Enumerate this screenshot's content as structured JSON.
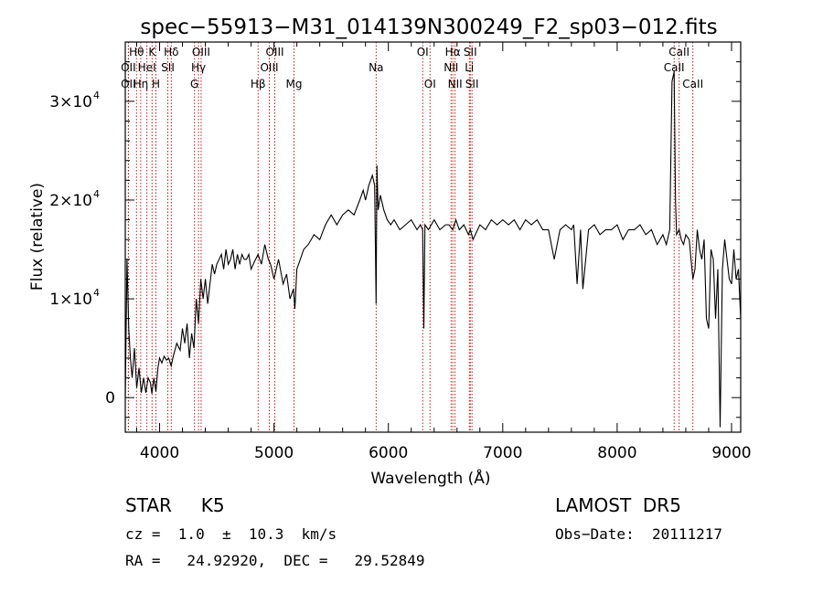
{
  "chart_data": {
    "type": "line",
    "title": "spec−55913−M31_014139N300249_F2_sp03−012.fits",
    "xlabel": "Wavelength (Å)",
    "ylabel": "Flux (relative)",
    "xlim": [
      3700,
      9080
    ],
    "ylim": [
      -3500,
      36000
    ],
    "x_ticks": [
      {
        "value": 4000,
        "label": "4000"
      },
      {
        "value": 5000,
        "label": "5000"
      },
      {
        "value": 6000,
        "label": "6000"
      },
      {
        "value": 7000,
        "label": "7000"
      },
      {
        "value": 8000,
        "label": "8000"
      },
      {
        "value": 9000,
        "label": "9000"
      }
    ],
    "y_ticks": [
      {
        "value": 0,
        "mantissa": "0",
        "exp": ""
      },
      {
        "value": 10000,
        "mantissa": "1×10",
        "exp": "4"
      },
      {
        "value": 20000,
        "mantissa": "2×10",
        "exp": "4"
      },
      {
        "value": 30000,
        "mantissa": "3×10",
        "exp": "4"
      }
    ],
    "grid": false,
    "line_color": "#000000",
    "spectrum": {
      "x": [
        3700,
        3715,
        3730,
        3745,
        3760,
        3780,
        3800,
        3820,
        3840,
        3860,
        3880,
        3900,
        3920,
        3933,
        3950,
        3968,
        3985,
        4000,
        4020,
        4040,
        4060,
        4080,
        4101,
        4120,
        4150,
        4180,
        4200,
        4220,
        4240,
        4260,
        4280,
        4300,
        4320,
        4340,
        4360,
        4380,
        4400,
        4420,
        4440,
        4460,
        4480,
        4500,
        4520,
        4540,
        4560,
        4580,
        4600,
        4620,
        4640,
        4660,
        4680,
        4700,
        4720,
        4740,
        4760,
        4780,
        4800,
        4830,
        4861,
        4890,
        4920,
        4950,
        4970,
        5000,
        5040,
        5080,
        5110,
        5140,
        5170,
        5183,
        5200,
        5230,
        5260,
        5300,
        5350,
        5400,
        5450,
        5500,
        5550,
        5600,
        5650,
        5700,
        5750,
        5780,
        5800,
        5830,
        5860,
        5880,
        5893,
        5900,
        5910,
        5930,
        5960,
        5990,
        6020,
        6050,
        6100,
        6150,
        6200,
        6250,
        6280,
        6300,
        6310,
        6320,
        6350,
        6400,
        6450,
        6500,
        6530,
        6563,
        6590,
        6620,
        6660,
        6700,
        6716,
        6740,
        6800,
        6850,
        6900,
        6950,
        7000,
        7050,
        7100,
        7150,
        7200,
        7250,
        7300,
        7350,
        7400,
        7450,
        7500,
        7550,
        7600,
        7620,
        7650,
        7680,
        7700,
        7750,
        7800,
        7850,
        7900,
        7950,
        8000,
        8050,
        8100,
        8150,
        8200,
        8250,
        8300,
        8350,
        8400,
        8430,
        8460,
        8480,
        8498,
        8510,
        8520,
        8542,
        8560,
        8580,
        8600,
        8630,
        8662,
        8680,
        8700,
        8720,
        8740,
        8760,
        8780,
        8800,
        8820,
        8840,
        8860,
        8880,
        8900,
        8920,
        8940,
        8960,
        8980,
        9000,
        9020,
        9040,
        9060,
        9080
      ],
      "y": [
        0,
        14000,
        7000,
        4000,
        2000,
        5000,
        1000,
        3000,
        500,
        2000,
        500,
        2000,
        1500,
        400,
        2000,
        600,
        3000,
        4000,
        3500,
        4200,
        3800,
        4000,
        3200,
        4200,
        5500,
        4800,
        7000,
        5500,
        7500,
        4000,
        6500,
        5000,
        10000,
        7500,
        12000,
        10000,
        12000,
        9500,
        11500,
        13500,
        12500,
        13500,
        14000,
        14500,
        13000,
        15000,
        13500,
        14000,
        15000,
        13000,
        14500,
        13500,
        14500,
        14000,
        14000,
        14500,
        13000,
        13800,
        14500,
        13500,
        15500,
        14000,
        13500,
        12000,
        14000,
        11500,
        12500,
        10000,
        11000,
        9000,
        13000,
        14000,
        15000,
        15500,
        16500,
        16000,
        17500,
        18500,
        17500,
        18500,
        19000,
        18500,
        20000,
        21000,
        20000,
        21500,
        22500,
        21500,
        9500,
        23500,
        19000,
        20500,
        19000,
        18000,
        17500,
        18000,
        17000,
        17500,
        18000,
        17000,
        17500,
        17000,
        7000,
        17500,
        17000,
        18000,
        17000,
        17500,
        17500,
        17000,
        18000,
        17000,
        17500,
        16500,
        17000,
        16000,
        17500,
        17000,
        18000,
        17500,
        18000,
        17500,
        18000,
        17000,
        18000,
        17500,
        18000,
        17000,
        17000,
        14000,
        17000,
        17500,
        17000,
        17500,
        11500,
        17000,
        11000,
        17000,
        17500,
        16500,
        17000,
        17000,
        17500,
        16000,
        17000,
        17000,
        17500,
        16500,
        17000,
        15500,
        16500,
        15500,
        17000,
        32000,
        33000,
        20000,
        16500,
        17000,
        16000,
        15500,
        16500,
        16000,
        12000,
        13000,
        17000,
        15000,
        14000,
        16000,
        8000,
        7000,
        15000,
        14000,
        8000,
        13000,
        -3000,
        13000,
        16000,
        14000,
        12000,
        11500,
        15000,
        12000,
        13000,
        8000
      ]
    },
    "lines": [
      {
        "name": "O II",
        "wavelength": 3727,
        "label": "OII",
        "row": 2
      },
      {
        "name": "H theta",
        "wavelength": 3798,
        "label": "Hθ",
        "row": 0
      },
      {
        "name": "O II",
        "wavelength": 3727,
        "label": "OII",
        "row": 1
      },
      {
        "name": "He I",
        "wavelength": 3889,
        "label": "HeI",
        "row": 1
      },
      {
        "name": "H eta",
        "wavelength": 3835,
        "label": "Hη",
        "row": 2
      },
      {
        "name": "K",
        "wavelength": 3934,
        "label": "K",
        "row": 0
      },
      {
        "name": "H",
        "wavelength": 3968,
        "label": "H",
        "row": 2
      },
      {
        "name": "H delta",
        "wavelength": 4102,
        "label": "Hδ",
        "row": 0
      },
      {
        "name": "S II",
        "wavelength": 4072,
        "label": "SII",
        "row": 1
      },
      {
        "name": "O III",
        "wavelength": 4363,
        "label": "OIII",
        "row": 0
      },
      {
        "name": "H gamma",
        "wavelength": 4340,
        "label": "Hγ",
        "row": 1
      },
      {
        "name": "G",
        "wavelength": 4305,
        "label": "G",
        "row": 2
      },
      {
        "name": "H beta",
        "wavelength": 4861,
        "label": "Hβ",
        "row": 2
      },
      {
        "name": "O III",
        "wavelength": 4959,
        "label": "OIII",
        "row": 1
      },
      {
        "name": "O III",
        "wavelength": 5007,
        "label": "OIII",
        "row": 0
      },
      {
        "name": "Mg",
        "wavelength": 5175,
        "label": "Mg",
        "row": 2
      },
      {
        "name": "Na",
        "wavelength": 5893,
        "label": "Na",
        "row": 1
      },
      {
        "name": "O I",
        "wavelength": 6300,
        "label": "OI",
        "row": 0
      },
      {
        "name": "O I",
        "wavelength": 6364,
        "label": "OI",
        "row": 2
      },
      {
        "name": "H alpha",
        "wavelength": 6563,
        "label": "Hα",
        "row": 0
      },
      {
        "name": "N II",
        "wavelength": 6548,
        "label": "NII",
        "row": 1
      },
      {
        "name": "N II",
        "wavelength": 6583,
        "label": "NII",
        "row": 2
      },
      {
        "name": "S II",
        "wavelength": 6716,
        "label": "SII",
        "row": 0
      },
      {
        "name": "Li",
        "wavelength": 6708,
        "label": "Li",
        "row": 1
      },
      {
        "name": "S II",
        "wavelength": 6731,
        "label": "SII",
        "row": 2
      },
      {
        "name": "Ca II",
        "wavelength": 8498,
        "label": "CaII",
        "row": 1
      },
      {
        "name": "Ca II",
        "wavelength": 8542,
        "label": "CaII",
        "row": 0
      },
      {
        "name": "Ca II",
        "wavelength": 8662,
        "label": "CaII",
        "row": 2
      }
    ],
    "line_marker_color": "#c00000"
  },
  "info": {
    "classification": "STAR     K5",
    "redshift": "cz =  1.0  ±  10.3  km/s",
    "coords": "RA =   24.92920,  DEC =   29.52849",
    "survey": "LAMOST  DR5",
    "obs_date": "Obs−Date:  20111217"
  }
}
